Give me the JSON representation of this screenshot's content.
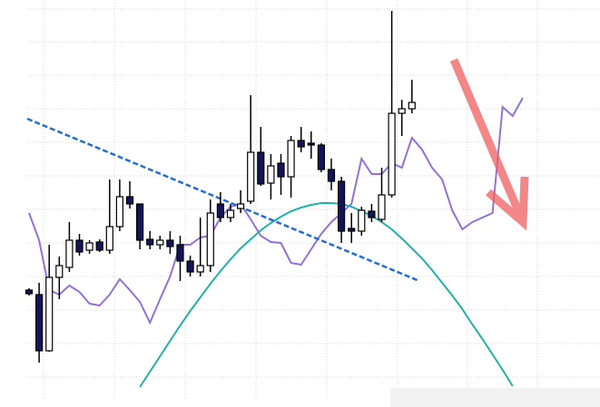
{
  "chart_data": {
    "type": "candlestick",
    "categories": [
      null,
      null,
      null,
      null,
      null,
      null,
      null,
      null,
      null,
      null,
      null,
      null,
      null,
      null,
      null,
      null,
      null,
      null,
      null,
      null,
      null,
      null,
      null,
      null,
      null,
      null,
      null,
      null,
      null,
      null,
      null,
      null,
      null,
      null,
      null,
      null,
      null,
      null,
      null,
      null,
      null,
      null,
      null,
      null,
      null,
      null,
      null,
      null,
      null,
      null
    ],
    "open": [
      120,
      115,
      53,
      134,
      145,
      175,
      164,
      173,
      164,
      190,
      223,
      215,
      176,
      170,
      175,
      170,
      152,
      140,
      147,
      215,
      200,
      210,
      218,
      272,
      238,
      260,
      245,
      285,
      282,
      280,
      253,
      240,
      188,
      185,
      207,
      198,
      225,
      315,
      320,
      null,
      null,
      null,
      null,
      null,
      null,
      null,
      null,
      null,
      null,
      null
    ],
    "high": [
      122,
      128,
      170,
      157,
      195,
      182,
      175,
      176,
      242,
      242,
      240,
      215,
      185,
      180,
      185,
      180,
      158,
      200,
      220,
      228,
      215,
      230,
      335,
      300,
      270,
      270,
      290,
      300,
      295,
      282,
      265,
      245,
      205,
      212,
      215,
      255,
      428,
      330,
      352,
      null,
      null,
      null,
      null,
      null,
      null,
      null,
      null,
      null,
      null,
      null
    ],
    "low": [
      114,
      40,
      52,
      110,
      140,
      158,
      160,
      162,
      160,
      185,
      210,
      165,
      165,
      165,
      160,
      130,
      135,
      135,
      140,
      195,
      195,
      205,
      215,
      235,
      220,
      225,
      222,
      272,
      265,
      250,
      230,
      172,
      172,
      180,
      195,
      195,
      222,
      290,
      315,
      null,
      null,
      null,
      null,
      null,
      null,
      null,
      null,
      null,
      null,
      null
    ],
    "close": [
      116,
      53,
      134,
      147,
      175,
      162,
      172,
      164,
      190,
      223,
      215,
      175,
      170,
      175,
      168,
      152,
      140,
      147,
      205,
      200,
      208,
      215,
      272,
      237,
      257,
      245,
      285,
      278,
      280,
      253,
      240,
      185,
      185,
      208,
      200,
      225,
      315,
      320,
      327,
      null,
      null,
      null,
      null,
      null,
      null,
      null,
      null,
      null,
      null,
      null
    ],
    "up_color": "#ffffff",
    "down_color": "#14145a",
    "lines": [
      {
        "color": "#9370db",
        "values": [
          205,
          175,
          120,
          115,
          125,
          118,
          105,
          103,
          115,
          132,
          120,
          107,
          84,
          110,
          135,
          170,
          170,
          178,
          180,
          200,
          212,
          215,
          198,
          180,
          173,
          172,
          150,
          148,
          165,
          182,
          195,
          205,
          215,
          265,
          248,
          248,
          260,
          255,
          288,
          275,
          255,
          242,
          208,
          187,
          195,
          200,
          205,
          322,
          312,
          332
        ]
      },
      {
        "color": "#20b2aa",
        "values": [
          null,
          null,
          null,
          null,
          null,
          null,
          null,
          null,
          null,
          null,
          null,
          13,
          30,
          47,
          64,
          81,
          97,
          112,
          127,
          141,
          154,
          166,
          176,
          186,
          194,
          201,
          207,
          211,
          214,
          216,
          216,
          215,
          212,
          207,
          202,
          195,
          187,
          177,
          166,
          155,
          142,
          128,
          114,
          99,
          82,
          66,
          49,
          32,
          14,
          null
        ]
      }
    ],
    "ylim": [
      0,
      440
    ],
    "yticks": [
      24,
      61,
      98,
      135,
      172,
      209,
      246,
      283,
      320,
      357,
      394,
      430
    ],
    "grid": true
  }
}
